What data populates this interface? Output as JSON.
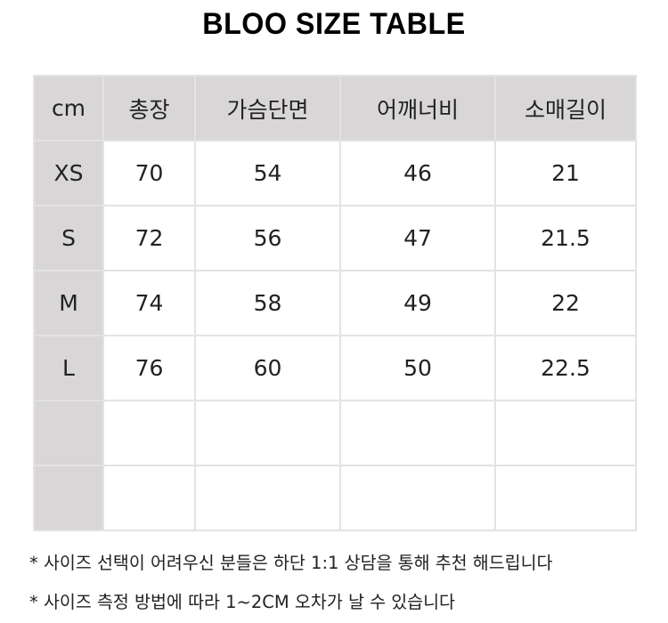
{
  "title": "BLOO SIZE TABLE",
  "table": {
    "headers": [
      "cm",
      "총장",
      "가슴단면",
      "어깨너비",
      "소매길이"
    ],
    "rows": [
      [
        "XS",
        "70",
        "54",
        "46",
        "21"
      ],
      [
        "S",
        "72",
        "56",
        "47",
        "21.5"
      ],
      [
        "M",
        "74",
        "58",
        "49",
        "22"
      ],
      [
        "L",
        "76",
        "60",
        "50",
        "22.5"
      ],
      [
        "",
        "",
        "",
        "",
        ""
      ],
      [
        "",
        "",
        "",
        "",
        ""
      ]
    ]
  },
  "notes": [
    "* 사이즈 선택이 어려우신 분들은 하단 1:1 상담을 통해 추천 해드립니다",
    "* 사이즈 측정 방법에 따라 1~2CM 오차가 날 수 있습니다"
  ],
  "colors": {
    "header_bg": "#d9d6d7",
    "border": "#e4e2e3"
  }
}
